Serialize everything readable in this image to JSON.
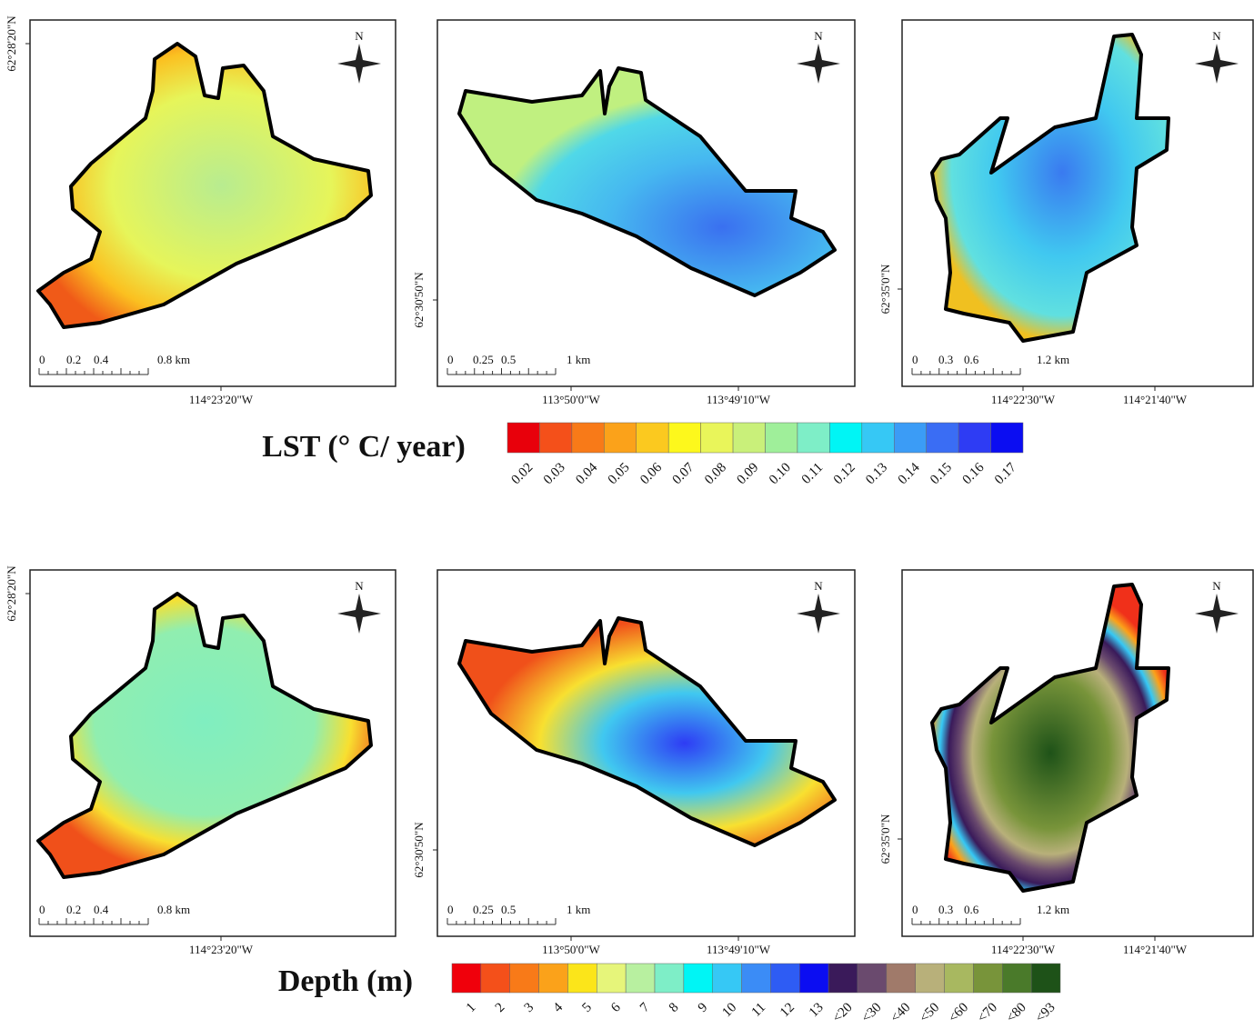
{
  "panels": [
    {
      "north": "N",
      "y_label": "62°28'20\"N",
      "x_labels": [
        "114°23'20\"W"
      ],
      "scale": [
        "0",
        "0.2",
        "0.4",
        "0.8 km"
      ]
    },
    {
      "north": "N",
      "y_label": "62°30'50\"N",
      "x_labels": [
        "113°50'0\"W",
        "113°49'10\"W"
      ],
      "scale": [
        "0",
        "0.25",
        "0.5",
        "1 km"
      ]
    },
    {
      "north": "N",
      "y_label": "62°35'0\"N",
      "x_labels": [
        "114°22'30\"W",
        "114°21'40\"W"
      ],
      "scale": [
        "0",
        "0.3",
        "0.6",
        "1.2 km"
      ]
    },
    {
      "north": "N",
      "y_label": "62°28'20\"N",
      "x_labels": [
        "114°23'20\"W"
      ],
      "scale": [
        "0",
        "0.2",
        "0.4",
        "0.8 km"
      ]
    },
    {
      "north": "N",
      "y_label": "62°30'50\"N",
      "x_labels": [
        "113°50'0\"W",
        "113°49'10\"W"
      ],
      "scale": [
        "0",
        "0.25",
        "0.5",
        "1 km"
      ]
    },
    {
      "north": "N",
      "y_label": "62°35'0\"N",
      "x_labels": [
        "114°22'30\"W",
        "114°21'40\"W"
      ],
      "scale": [
        "0",
        "0.3",
        "0.6",
        "1.2 km"
      ]
    }
  ],
  "legends": [
    {
      "title": "LST (° C/ year)",
      "colors": [
        "#e8000b",
        "#f4501a",
        "#f87a18",
        "#fba21a",
        "#fbc91f",
        "#fdf81c",
        "#e9f55a",
        "#c9f07a",
        "#9fef9a",
        "#7eeec7",
        "#00f5f5",
        "#36c8f5",
        "#3b9cf6",
        "#3a6df4",
        "#2e3cf4",
        "#0b0df2"
      ],
      "labels": [
        "0.02",
        "0.03",
        "0.04",
        "0.05",
        "0.06",
        "0.07",
        "0.08",
        "0.09",
        "0.10",
        "0.11",
        "0.12",
        "0.13",
        "0.14",
        "0.15",
        "0.16",
        "0.17"
      ]
    },
    {
      "title": "Depth (m)",
      "colors": [
        "#f0000b",
        "#f4501a",
        "#f87a18",
        "#fba21a",
        "#fbe51a",
        "#e6f57a",
        "#b8f0a0",
        "#7eeec7",
        "#00f5f5",
        "#36c8f5",
        "#3b8cf6",
        "#2e5cf4",
        "#0b0df2",
        "#3a1a5a",
        "#6a4a6e",
        "#a07a6a",
        "#b8b07a",
        "#a8b860",
        "#78943a",
        "#4a7a2a",
        "#1e5218"
      ],
      "labels": [
        "1",
        "2",
        "3",
        "4",
        "5",
        "6",
        "7",
        "8",
        "9",
        "10",
        "11",
        "12",
        "13",
        "<20",
        "<30",
        "<40",
        "<50",
        "<60",
        "<70",
        "<80",
        "<93"
      ]
    }
  ]
}
